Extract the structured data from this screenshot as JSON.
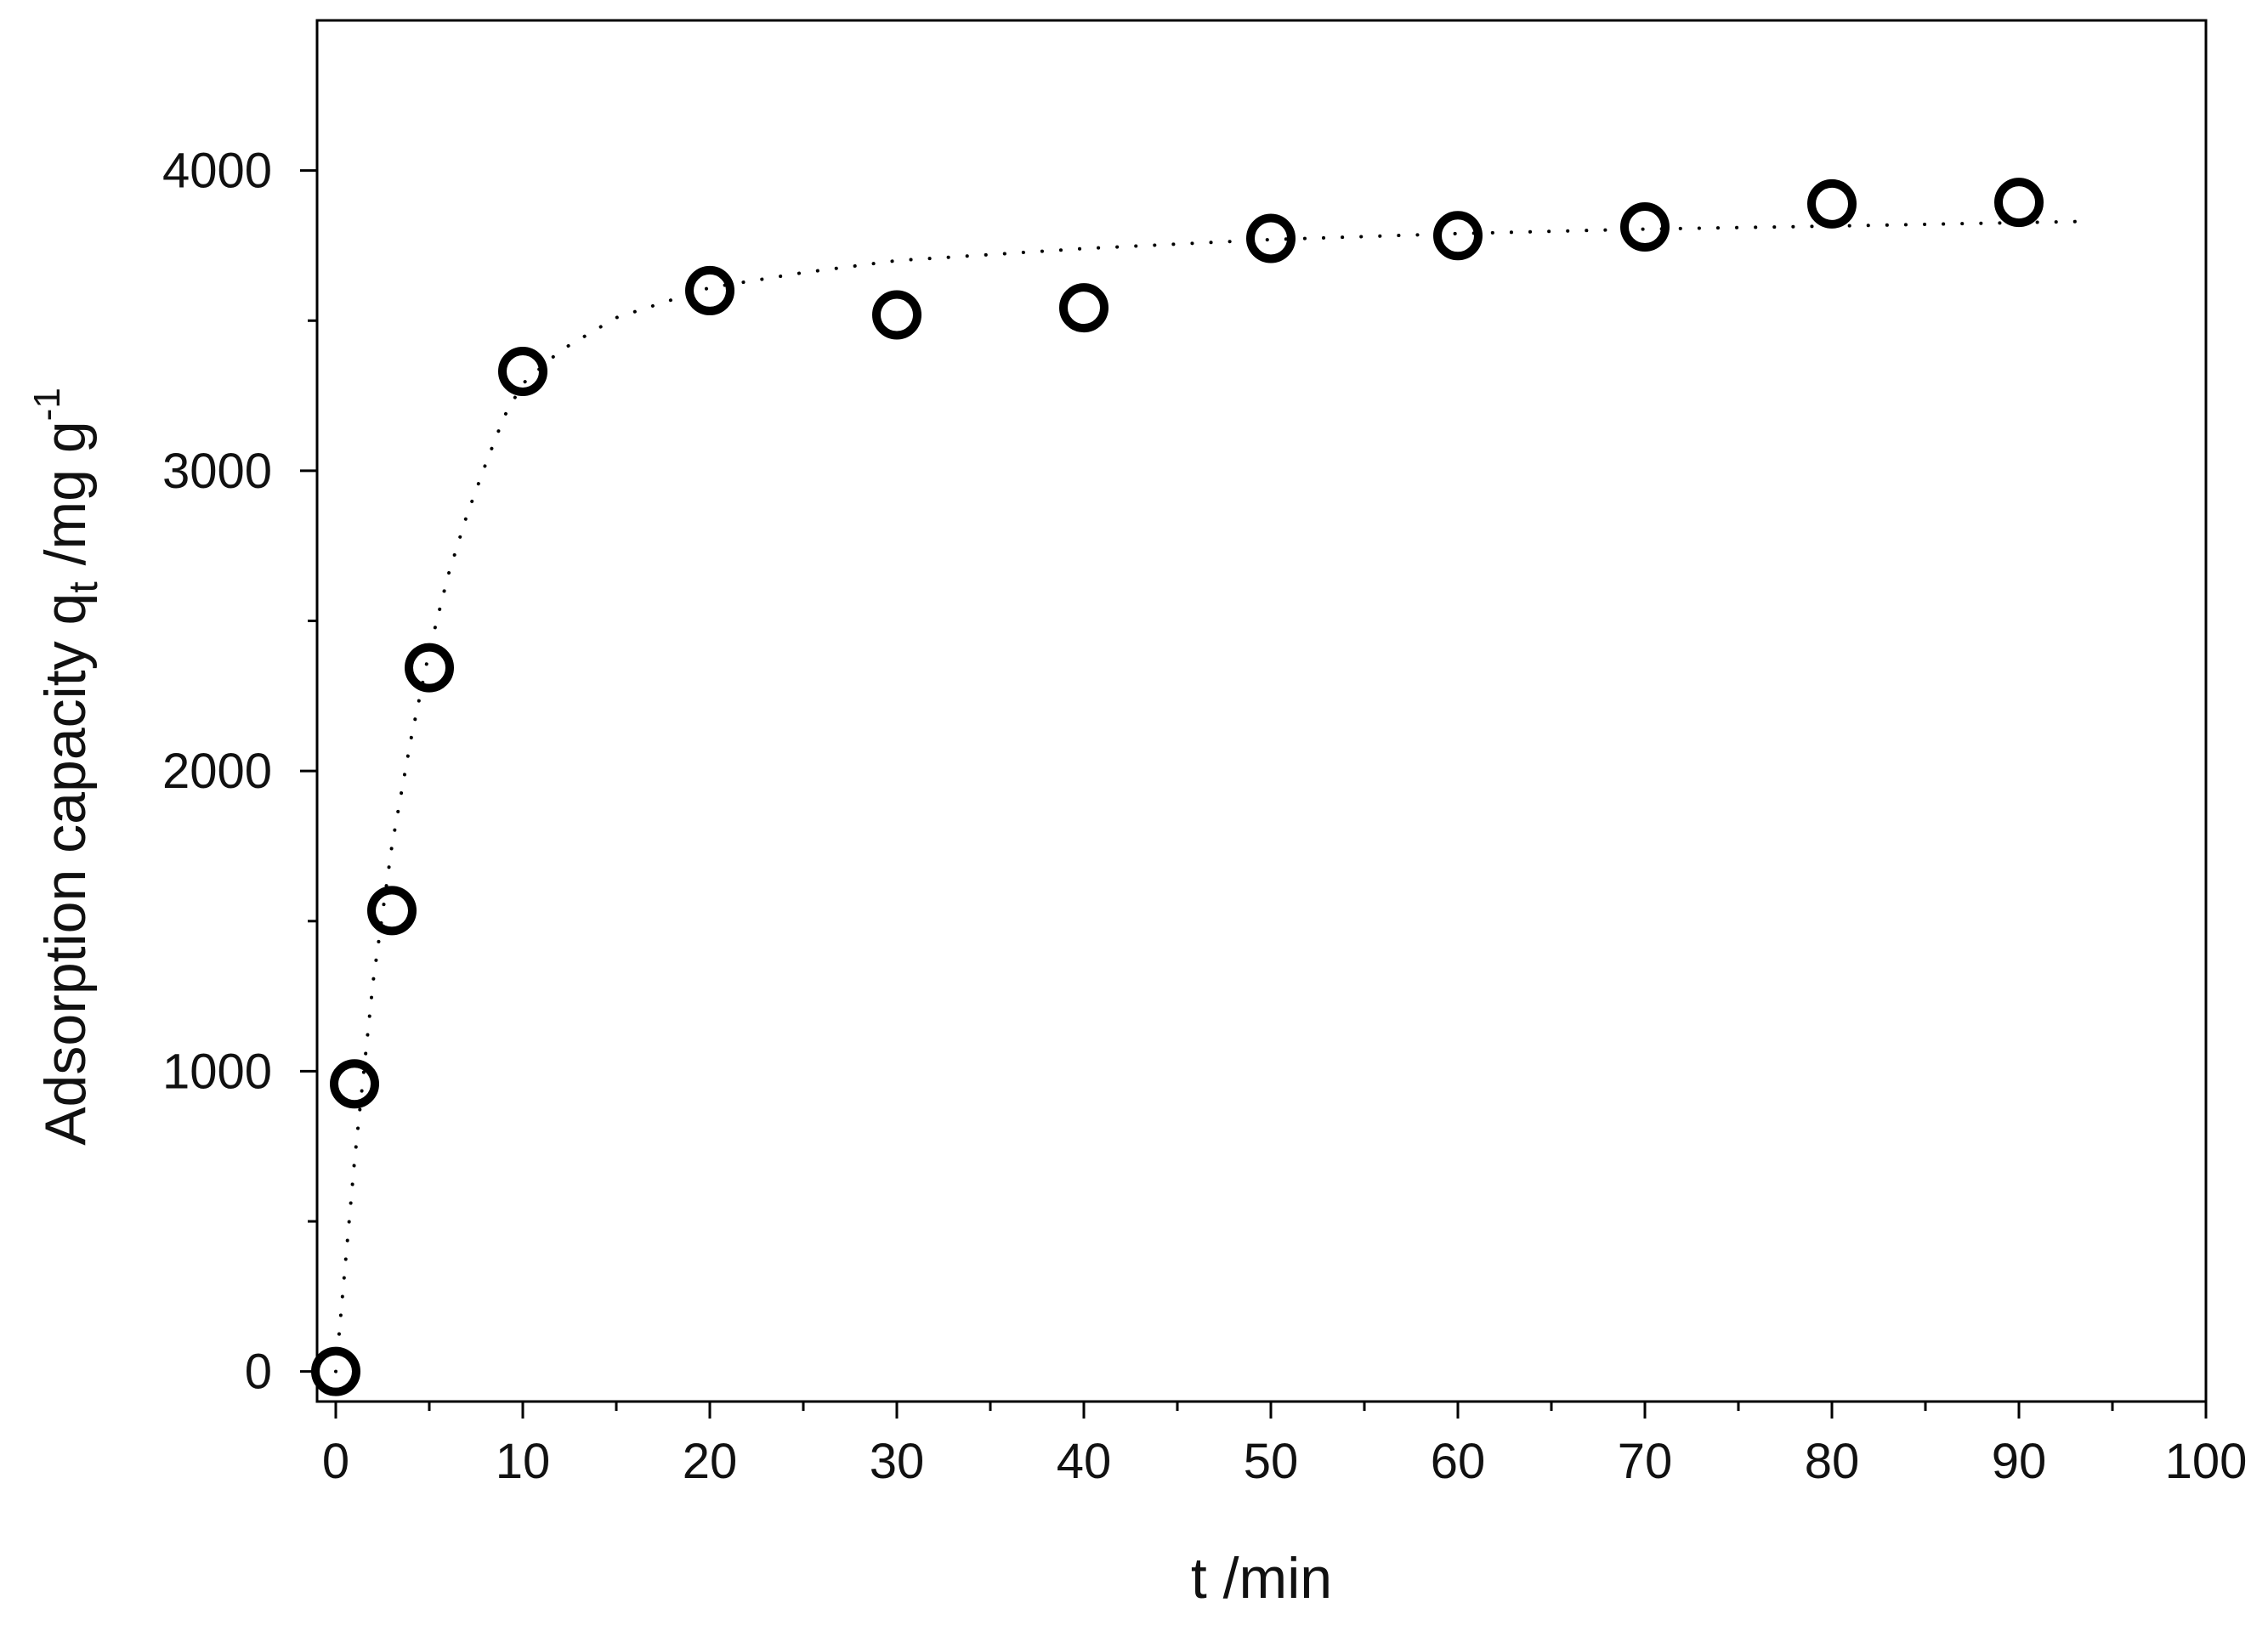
{
  "chart_data": {
    "type": "scatter",
    "xlabel": "t /min",
    "ylabel": {
      "main": "Adsorption capacity q",
      "sub": "t",
      "unit": " /mg g",
      "sup": "-1"
    },
    "xlim": [
      -1,
      100
    ],
    "ylim": [
      -100,
      4500
    ],
    "xticks": [
      0,
      10,
      20,
      30,
      40,
      50,
      60,
      70,
      80,
      90,
      100
    ],
    "xminorticks": [
      5,
      15,
      25,
      35,
      45,
      55,
      65,
      75,
      85,
      95
    ],
    "yticks": [
      0,
      1000,
      2000,
      3000,
      4000
    ],
    "yminorticks": [
      500,
      1500,
      2500,
      3500
    ],
    "series": [
      {
        "color": "#000000",
        "x": [
          0,
          1,
          3,
          5,
          10,
          20,
          30,
          40,
          50,
          60,
          70,
          80,
          90
        ],
        "values": [
          0,
          958,
          1535,
          2344,
          3331,
          3600,
          3519,
          3543,
          3774,
          3783,
          3812,
          3889,
          3894
        ]
      },
      {
        "type": "line",
        "style": "dotted",
        "color": "#000000",
        "x": [
          0,
          1,
          2,
          3,
          4,
          5,
          6,
          7,
          8,
          9,
          10,
          12,
          15,
          20,
          25,
          30,
          40,
          50,
          60,
          70,
          80,
          93
        ],
        "values": [
          0,
          700,
          1300,
          1750,
          2100,
          2400,
          2650,
          2850,
          3020,
          3180,
          3290,
          3400,
          3510,
          3610,
          3660,
          3700,
          3740,
          3770,
          3790,
          3805,
          3815,
          3830
        ]
      }
    ]
  }
}
